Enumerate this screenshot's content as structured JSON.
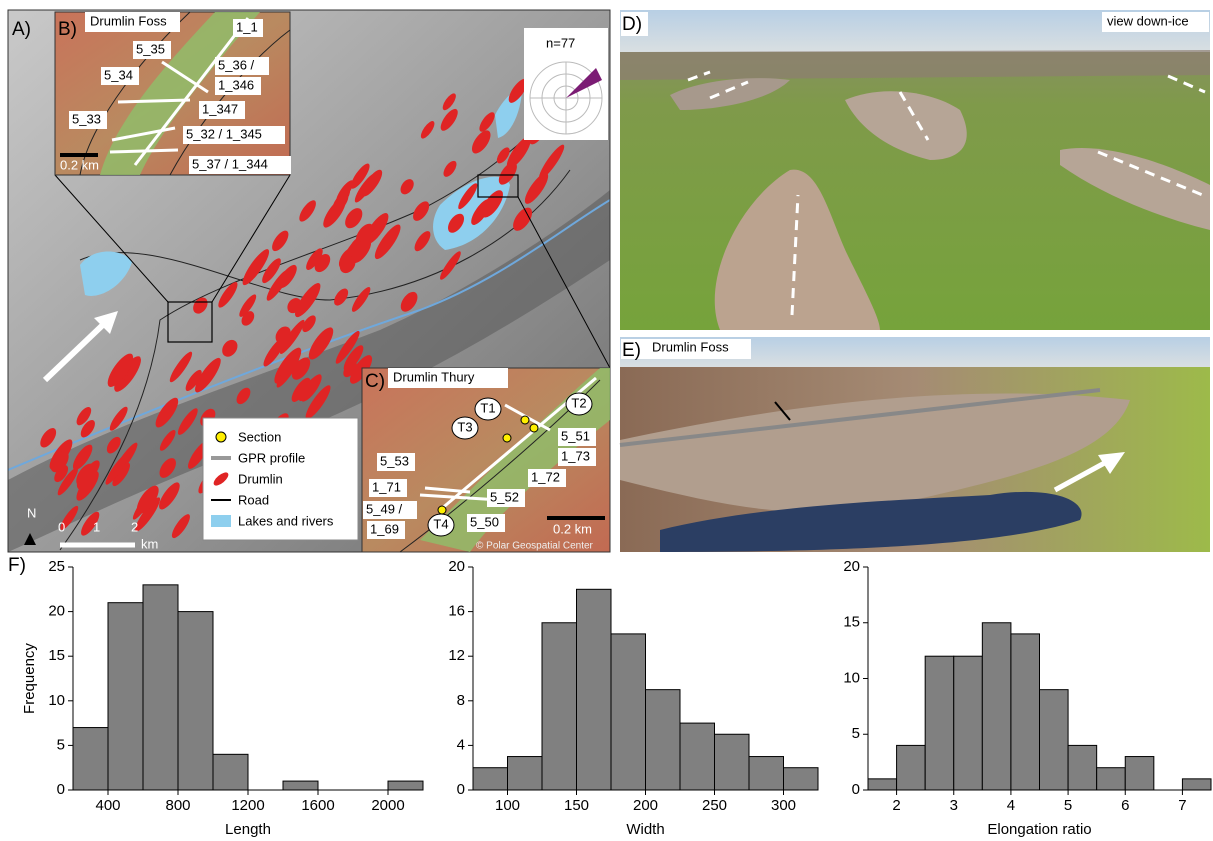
{
  "panels": {
    "a": {
      "label": "A)",
      "rose": "n=77",
      "north": "N",
      "scale": [
        "0",
        "1",
        "2",
        "km"
      ],
      "legend": [
        "Section",
        "GPR profile",
        "Drumlin",
        "Road",
        "Lakes and rivers"
      ]
    },
    "b": {
      "label": "B)",
      "title": "Drumlin Foss",
      "scale": "0.2 km",
      "profiles": [
        "1_1",
        "5_35",
        "5_36 /",
        "1_346",
        "5_34",
        "1_347",
        "5_33",
        "5_32 / 1_345",
        "5_37 / 1_344"
      ]
    },
    "c": {
      "label": "C)",
      "title": "Drumlin Thury",
      "scale": "0.2 km",
      "credit": "© Polar Geospatial Center",
      "sections": [
        "T1",
        "T2",
        "T3",
        "T4"
      ],
      "profiles": [
        "5_51",
        "1_73",
        "5_53",
        "1_72",
        "1_71",
        "5_52",
        "5_49 /",
        "1_69",
        "5_50"
      ]
    },
    "d": {
      "label": "D)",
      "note": "view down-ice"
    },
    "e": {
      "label": "E)",
      "title": "Drumlin Foss"
    },
    "f": {
      "label": "F)"
    }
  },
  "chart_data": [
    {
      "type": "histogram",
      "xlabel": "Length",
      "ylabel": "Frequency",
      "color": "#808080",
      "bins": [
        200,
        400,
        600,
        800,
        1000,
        1200,
        1400,
        1600,
        1800,
        2000,
        2200
      ],
      "values": [
        7,
        21,
        23,
        20,
        4,
        0,
        1,
        0,
        0,
        1
      ],
      "xlim": [
        200,
        2200
      ],
      "xticks": [
        400,
        800,
        1200,
        1600,
        2000
      ],
      "ylim": [
        0,
        25
      ],
      "yticks": [
        0,
        5,
        10,
        15,
        20,
        25
      ]
    },
    {
      "type": "histogram",
      "xlabel": "Width",
      "color": "#808080",
      "bins": [
        75,
        100,
        125,
        150,
        175,
        200,
        225,
        250,
        275,
        300,
        325
      ],
      "values": [
        2,
        3,
        15,
        18,
        14,
        9,
        6,
        5,
        3,
        2
      ],
      "xlim": [
        75,
        325
      ],
      "xticks": [
        100,
        150,
        200,
        250,
        300
      ],
      "ylim": [
        0,
        20
      ],
      "yticks": [
        0,
        4,
        8,
        12,
        16,
        20
      ]
    },
    {
      "type": "histogram",
      "xlabel": "Elongation ratio",
      "color": "#808080",
      "bins": [
        1.5,
        2,
        2.5,
        3,
        3.5,
        4,
        4.5,
        5,
        5.5,
        6,
        6.5,
        7,
        7.5
      ],
      "values": [
        1,
        4,
        12,
        12,
        15,
        14,
        9,
        4,
        2,
        3,
        0,
        1
      ],
      "xlim": [
        1.5,
        7.5
      ],
      "xticks": [
        2,
        3,
        4,
        5,
        6,
        7
      ],
      "ylim": [
        0,
        20
      ],
      "yticks": [
        0,
        5,
        10,
        15,
        20
      ]
    }
  ]
}
